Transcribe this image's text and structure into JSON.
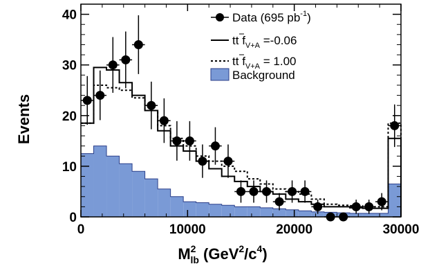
{
  "chart_data": {
    "type": "histogram",
    "title": "",
    "xlabel": {
      "base": "M",
      "sub": "lb",
      "sup": "2",
      "unit_open": " (GeV",
      "unit_sup1": "2",
      "unit_mid": "/c",
      "unit_sup2": "4",
      "unit_close": ")"
    },
    "ylabel": "Events",
    "xlim": [
      0,
      30000
    ],
    "ylim": [
      0,
      42
    ],
    "x_ticks": [
      0,
      10000,
      20000,
      30000
    ],
    "x_tick_labels": [
      "0",
      "10000",
      "20000",
      "30000"
    ],
    "y_ticks": [
      0,
      10,
      20,
      30,
      40
    ],
    "y_tick_labels": [
      "0",
      "10",
      "20",
      "30",
      "40"
    ],
    "bin_edges": [
      0,
      1200,
      2400,
      3600,
      4800,
      6000,
      7200,
      8400,
      9600,
      10800,
      12000,
      13200,
      14400,
      15600,
      16800,
      18000,
      19200,
      20400,
      21600,
      22800,
      24000,
      25200,
      26400,
      27600,
      28800,
      30000
    ],
    "series": [
      {
        "name": "Data",
        "legend_main": "Data (695 pb",
        "legend_sup": "-1",
        "legend_end": ")",
        "style": "points",
        "values": [
          23,
          24,
          30,
          31,
          34,
          22,
          19,
          15,
          15,
          11,
          14,
          11,
          5,
          5,
          5,
          3,
          5,
          5,
          2,
          0,
          0,
          2,
          2,
          3,
          18
        ],
        "errors": [
          4.8,
          4.9,
          5.5,
          5.6,
          5.8,
          4.7,
          4.4,
          3.9,
          3.9,
          3.3,
          3.7,
          3.3,
          2.2,
          2.2,
          2.2,
          1.7,
          2.2,
          2.2,
          1.4,
          0,
          0,
          1.4,
          1.4,
          1.7,
          4.2
        ]
      },
      {
        "name": "t t-bar f_V+A = -0.06",
        "legend_pre": "t",
        "legend_tbar": "t",
        "legend_f": " f",
        "legend_sub": "V+A",
        "legend_val": " =-0.06",
        "style": "solid-step",
        "values": [
          18.5,
          29.5,
          29,
          26.5,
          24,
          21,
          17,
          14,
          13,
          11,
          9.5,
          8,
          7,
          6,
          5,
          4.5,
          3.5,
          3,
          2.5,
          2,
          2,
          1.8,
          1.7,
          1.7,
          15.5
        ]
      },
      {
        "name": "t t-bar f_V+A = 1.00",
        "legend_pre": "t",
        "legend_tbar": "t",
        "legend_f": " f",
        "legend_sub": "V+A",
        "legend_val": " = 1.00",
        "style": "dashed-step",
        "values": [
          18.5,
          26,
          25.5,
          25,
          23.5,
          21,
          18,
          15.5,
          14,
          12,
          11,
          10,
          9,
          7.5,
          6.5,
          5.5,
          5,
          4.5,
          3.5,
          2.5,
          2.3,
          2.2,
          2,
          2,
          18.5
        ]
      },
      {
        "name": "Background",
        "legend": "Background",
        "style": "filled",
        "color": "#7a9ad6",
        "values": [
          12.5,
          14,
          12,
          10.5,
          9,
          7.5,
          5.5,
          4,
          3,
          2.8,
          2.5,
          2.3,
          2,
          2,
          1.8,
          1.6,
          1.4,
          1.2,
          1,
          0.9,
          0.8,
          0.7,
          0.7,
          0.7,
          6.5
        ]
      }
    ],
    "colors": {
      "background_fill": "#7a9ad6",
      "background_edge": "#2b3f8a",
      "line": "#000000"
    }
  }
}
